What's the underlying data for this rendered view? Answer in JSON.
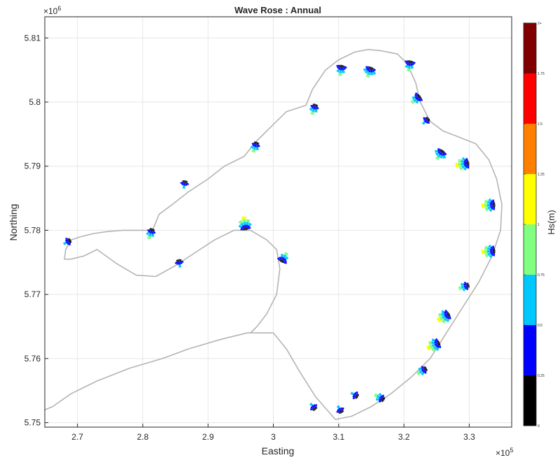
{
  "chart_data": {
    "type": "scatter",
    "subtype": "wave-rose-map",
    "title": "Wave Rose : Annual",
    "xlabel": "Easting",
    "ylabel": "Northing",
    "x_exponent": "×10",
    "x_exponent_power": "5",
    "y_exponent": "×10",
    "y_exponent_power": "6",
    "xlim": [
      2.65,
      3.365
    ],
    "ylim": [
      5.7493,
      5.8133
    ],
    "xticks": [
      "2.7",
      "2.8",
      "2.9",
      "3",
      "3.1",
      "3.2",
      "3.3"
    ],
    "xtick_values": [
      2.7,
      2.8,
      2.9,
      3.0,
      3.1,
      3.2,
      3.3
    ],
    "yticks": [
      "5.75",
      "5.76",
      "5.77",
      "5.78",
      "5.79",
      "5.8",
      "5.81"
    ],
    "ytick_values": [
      5.75,
      5.76,
      5.77,
      5.78,
      5.79,
      5.8,
      5.81
    ],
    "grid": true,
    "colorbar": {
      "label": "Hs(m)",
      "range": [
        0,
        2
      ],
      "ticks": [
        "0",
        "0.25",
        "0.5",
        "0.75",
        "1",
        "1.25",
        "1.5",
        "1.75",
        "2+"
      ],
      "tick_values": [
        0,
        0.25,
        0.5,
        0.75,
        1,
        1.25,
        1.5,
        1.75,
        2
      ],
      "bins": [
        {
          "range": [
            0,
            0.25
          ],
          "color": "#000000"
        },
        {
          "range": [
            0.25,
            0.5
          ],
          "color": "#0000ff"
        },
        {
          "range": [
            0.5,
            0.75
          ],
          "color": "#00c8ff"
        },
        {
          "range": [
            0.75,
            1
          ],
          "color": "#80ff80"
        },
        {
          "range": [
            1,
            1.25
          ],
          "color": "#ffff00"
        },
        {
          "range": [
            1.25,
            1.5
          ],
          "color": "#ff8000"
        },
        {
          "range": [
            1.5,
            1.75
          ],
          "color": "#ff0000"
        },
        {
          "range": [
            1.75,
            2
          ],
          "color": "#800000"
        }
      ]
    },
    "coastline": [
      [
        2.65,
        5.752
      ],
      [
        2.662,
        5.7525
      ],
      [
        2.69,
        5.7545
      ],
      [
        2.73,
        5.7565
      ],
      [
        2.78,
        5.7585
      ],
      [
        2.83,
        5.76
      ],
      [
        2.87,
        5.7615
      ],
      [
        2.92,
        5.763
      ],
      [
        2.96,
        5.764
      ],
      [
        3.0,
        5.764
      ],
      [
        3.02,
        5.7615
      ],
      [
        3.04,
        5.758
      ],
      [
        3.065,
        5.754
      ],
      [
        3.095,
        5.7505
      ],
      [
        3.12,
        5.751
      ],
      [
        3.15,
        5.7525
      ],
      [
        3.18,
        5.7545
      ],
      [
        3.21,
        5.757
      ],
      [
        3.24,
        5.76
      ],
      [
        3.265,
        5.764
      ],
      [
        3.29,
        5.768
      ],
      [
        3.315,
        5.772
      ],
      [
        3.335,
        5.776
      ],
      [
        3.348,
        5.78
      ],
      [
        3.35,
        5.784
      ],
      [
        3.342,
        5.788
      ],
      [
        3.33,
        5.791
      ],
      [
        3.31,
        5.7935
      ],
      [
        3.285,
        5.7945
      ],
      [
        3.26,
        5.7955
      ],
      [
        3.24,
        5.797
      ],
      [
        3.225,
        5.8
      ],
      [
        3.218,
        5.803
      ],
      [
        3.205,
        5.806
      ],
      [
        3.19,
        5.8075
      ],
      [
        3.165,
        5.808
      ],
      [
        3.145,
        5.8082
      ],
      [
        3.125,
        5.8078
      ],
      [
        3.1,
        5.8066
      ],
      [
        3.08,
        5.805
      ],
      [
        3.06,
        5.802
      ],
      [
        3.05,
        5.7995
      ],
      [
        3.02,
        5.7985
      ],
      [
        3.0,
        5.7965
      ],
      [
        2.975,
        5.794
      ],
      [
        2.955,
        5.7915
      ],
      [
        2.925,
        5.79
      ],
      [
        2.9,
        5.788
      ],
      [
        2.87,
        5.786
      ],
      [
        2.845,
        5.784
      ],
      [
        2.825,
        5.7825
      ],
      [
        2.815,
        5.78
      ],
      [
        2.795,
        5.78
      ],
      [
        2.77,
        5.78
      ],
      [
        2.745,
        5.7798
      ],
      [
        2.725,
        5.7795
      ],
      [
        2.705,
        5.779
      ],
      [
        2.69,
        5.7785
      ],
      [
        2.682,
        5.777
      ],
      [
        2.68,
        5.7755
      ],
      [
        2.69,
        5.7755
      ],
      [
        2.71,
        5.776
      ],
      [
        2.73,
        5.777
      ],
      [
        2.76,
        5.7748
      ],
      [
        2.79,
        5.773
      ],
      [
        2.82,
        5.7728
      ],
      [
        2.85,
        5.7745
      ],
      [
        2.88,
        5.7765
      ],
      [
        2.91,
        5.7785
      ],
      [
        2.94,
        5.78
      ],
      [
        2.965,
        5.78
      ],
      [
        2.99,
        5.7785
      ],
      [
        3.005,
        5.777
      ],
      [
        3.01,
        5.774
      ],
      [
        3.005,
        5.77
      ],
      [
        2.99,
        5.767
      ],
      [
        2.975,
        5.765
      ],
      [
        2.965,
        5.764
      ]
    ],
    "roses": [
      {
        "x": 2.69,
        "y": 5.7785,
        "dir": 240,
        "max": 0.9
      },
      {
        "x": 2.815,
        "y": 5.7803,
        "dir": 200,
        "max": 1.0
      },
      {
        "x": 2.855,
        "y": 5.7755,
        "dir": 170,
        "max": 0.9
      },
      {
        "x": 2.865,
        "y": 5.7878,
        "dir": 190,
        "max": 0.9
      },
      {
        "x": 2.958,
        "y": 5.78,
        "dir": 350,
        "max": 1.3
      },
      {
        "x": 2.975,
        "y": 5.7938,
        "dir": 200,
        "max": 1.0
      },
      {
        "x": 3.012,
        "y": 5.775,
        "dir": 30,
        "max": 1.1
      },
      {
        "x": 3.065,
        "y": 5.7997,
        "dir": 200,
        "max": 1.0
      },
      {
        "x": 3.105,
        "y": 5.8058,
        "dir": 190,
        "max": 1.1
      },
      {
        "x": 3.15,
        "y": 5.8055,
        "dir": 200,
        "max": 1.2
      },
      {
        "x": 3.21,
        "y": 5.8065,
        "dir": 190,
        "max": 1.1
      },
      {
        "x": 3.225,
        "y": 5.801,
        "dir": 230,
        "max": 1.1
      },
      {
        "x": 3.238,
        "y": 5.7975,
        "dir": 225,
        "max": 0.9
      },
      {
        "x": 3.26,
        "y": 5.7925,
        "dir": 215,
        "max": 1.2
      },
      {
        "x": 3.3,
        "y": 5.7905,
        "dir": 260,
        "max": 1.4
      },
      {
        "x": 3.34,
        "y": 5.784,
        "dir": 265,
        "max": 1.3
      },
      {
        "x": 3.34,
        "y": 5.7768,
        "dir": 265,
        "max": 1.4
      },
      {
        "x": 3.3,
        "y": 5.7715,
        "dir": 250,
        "max": 1.0
      },
      {
        "x": 3.27,
        "y": 5.767,
        "dir": 240,
        "max": 1.4
      },
      {
        "x": 3.255,
        "y": 5.7625,
        "dir": 245,
        "max": 1.4
      },
      {
        "x": 3.235,
        "y": 5.7585,
        "dir": 240,
        "max": 1.0
      },
      {
        "x": 3.17,
        "y": 5.7535,
        "dir": 300,
        "max": 1.0
      },
      {
        "x": 3.13,
        "y": 5.754,
        "dir": 300,
        "max": 0.9
      },
      {
        "x": 3.105,
        "y": 5.7515,
        "dir": 330,
        "max": 0.9
      },
      {
        "x": 3.065,
        "y": 5.752,
        "dir": 320,
        "max": 0.9
      }
    ]
  }
}
